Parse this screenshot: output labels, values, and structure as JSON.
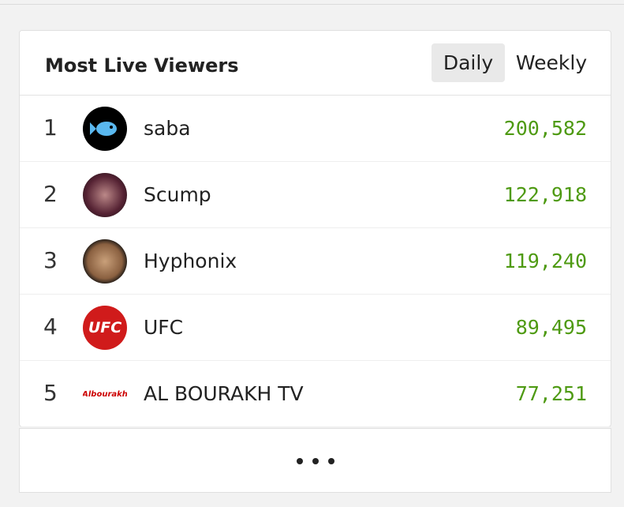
{
  "header": {
    "title": "Most Live Viewers",
    "tabs": [
      "Daily",
      "Weekly"
    ]
  },
  "rows": [
    {
      "rank": "1",
      "name": "saba",
      "viewers": "200,582"
    },
    {
      "rank": "2",
      "name": "Scump",
      "viewers": "122,918"
    },
    {
      "rank": "3",
      "name": "Hyphonix",
      "viewers": "119,240"
    },
    {
      "rank": "4",
      "name": "UFC",
      "viewers": "89,495",
      "logo_text": "UFC"
    },
    {
      "rank": "5",
      "name": "AL BOURAKH TV",
      "viewers": "77,251",
      "logo_text": "Albourakh"
    }
  ]
}
